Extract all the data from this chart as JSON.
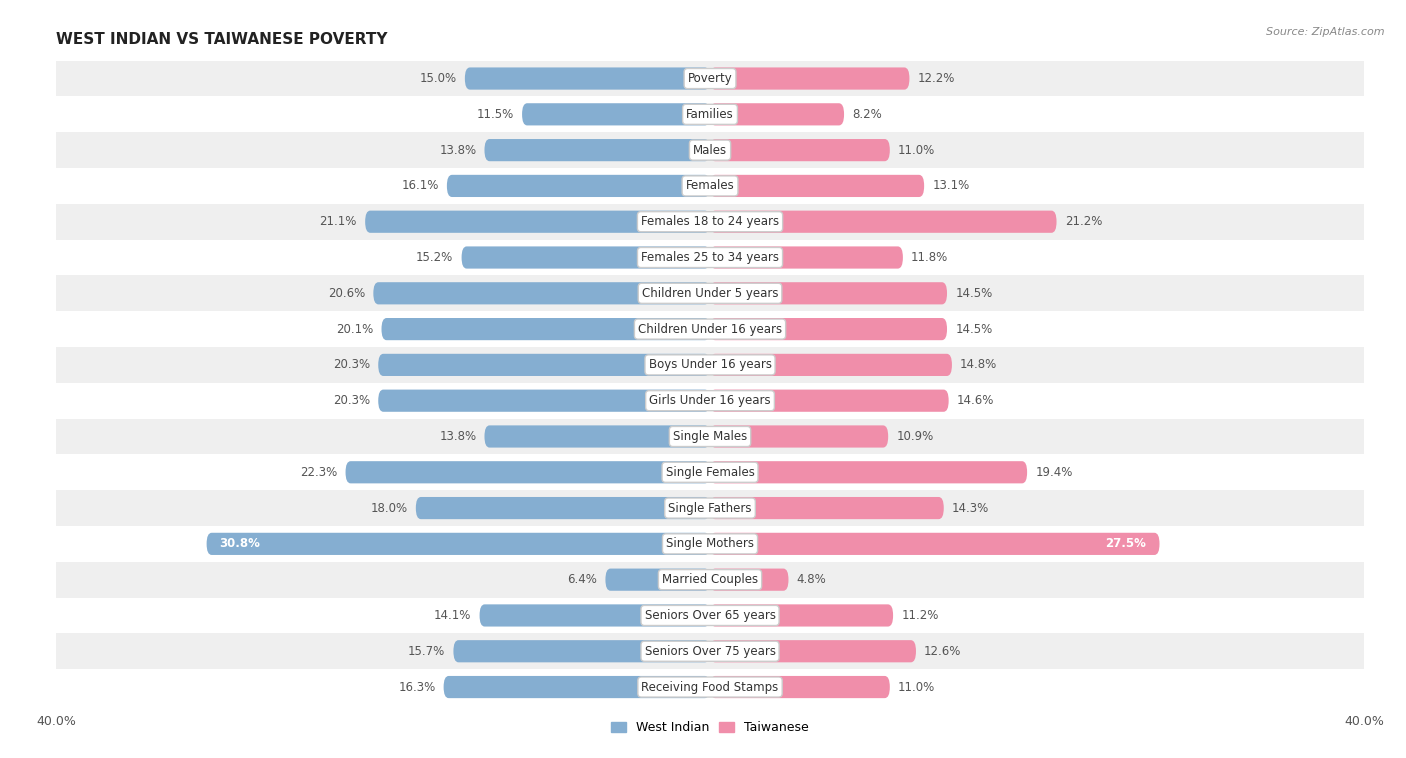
{
  "title": "WEST INDIAN VS TAIWANESE POVERTY",
  "source": "Source: ZipAtlas.com",
  "categories": [
    "Poverty",
    "Families",
    "Males",
    "Females",
    "Females 18 to 24 years",
    "Females 25 to 34 years",
    "Children Under 5 years",
    "Children Under 16 years",
    "Boys Under 16 years",
    "Girls Under 16 years",
    "Single Males",
    "Single Females",
    "Single Fathers",
    "Single Mothers",
    "Married Couples",
    "Seniors Over 65 years",
    "Seniors Over 75 years",
    "Receiving Food Stamps"
  ],
  "west_indian": [
    15.0,
    11.5,
    13.8,
    16.1,
    21.1,
    15.2,
    20.6,
    20.1,
    20.3,
    20.3,
    13.8,
    22.3,
    18.0,
    30.8,
    6.4,
    14.1,
    15.7,
    16.3
  ],
  "taiwanese": [
    12.2,
    8.2,
    11.0,
    13.1,
    21.2,
    11.8,
    14.5,
    14.5,
    14.8,
    14.6,
    10.9,
    19.4,
    14.3,
    27.5,
    4.8,
    11.2,
    12.6,
    11.0
  ],
  "west_indian_color": "#85aed1",
  "taiwanese_color": "#f08eaa",
  "row_bg_odd": "#efefef",
  "row_bg_even": "#ffffff",
  "axis_max": 40.0,
  "label_fontsize": 8.5,
  "title_fontsize": 11,
  "bar_height": 0.62,
  "inside_label_threshold": 25.0
}
